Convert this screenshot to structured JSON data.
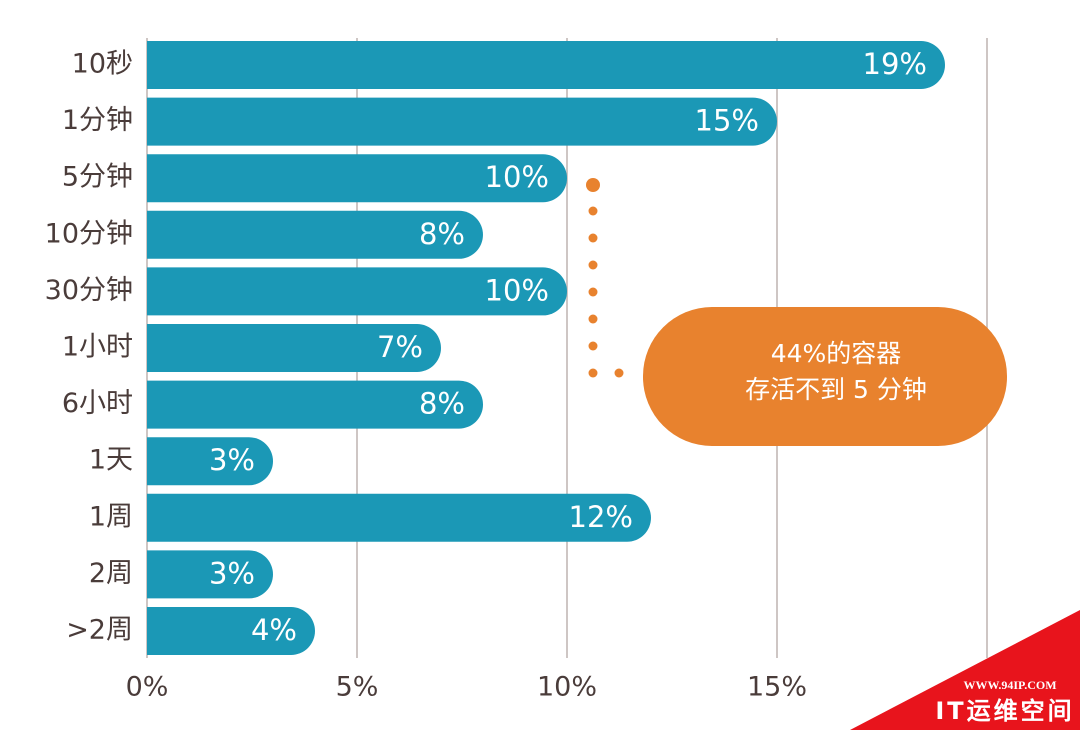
{
  "chart_data": {
    "type": "bar",
    "orientation": "horizontal",
    "categories": [
      "10秒",
      "1分钟",
      "5分钟",
      "10分钟",
      "30分钟",
      "1小时",
      "6小时",
      "1天",
      "1周",
      "2周",
      ">2周"
    ],
    "values": [
      19,
      15,
      10,
      8,
      10,
      7,
      8,
      3,
      12,
      3,
      4
    ],
    "value_labels": [
      "19%",
      "15%",
      "10%",
      "8%",
      "10%",
      "7%",
      "8%",
      "3%",
      "12%",
      "3%",
      "4%"
    ],
    "color": "#1b98b6",
    "xlim": [
      0,
      20
    ],
    "xticks": [
      {
        "value": 0,
        "label": "0%"
      },
      {
        "value": 5,
        "label": "5%"
      },
      {
        "value": 10,
        "label": "10%"
      },
      {
        "value": 15,
        "label": "15%"
      }
    ],
    "grid": true,
    "annotation": {
      "lines": [
        "44%的容器",
        "存活不到 5 分钟"
      ],
      "color": "#e8822e"
    }
  },
  "watermark": {
    "url": "WWW.94IP.COM",
    "text": "IT运维空间",
    "color": "#e8141c"
  }
}
